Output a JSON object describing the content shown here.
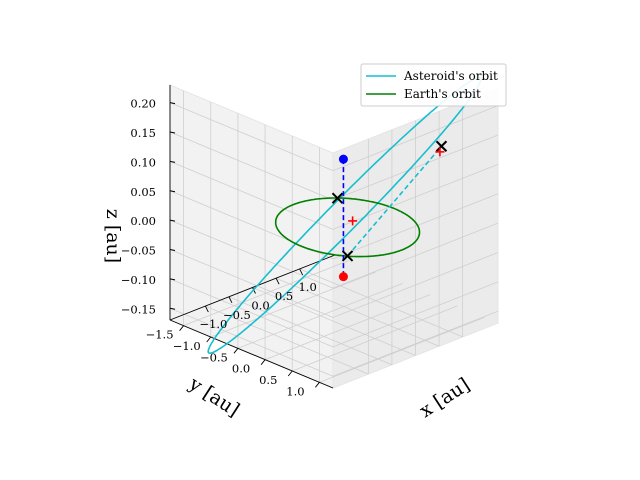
{
  "chart_data": {
    "type": "3d-line",
    "axes": {
      "x": {
        "label": "x [au]",
        "ticks": [
          -1.0,
          -0.5,
          0.0,
          0.5,
          1.0
        ],
        "tick_labels": [
          "−1.0",
          "−0.5",
          "0.0",
          "0.5",
          "1.0"
        ],
        "range": [
          -1.75,
          1.75
        ]
      },
      "y": {
        "label": "y [au]",
        "ticks": [
          -1.5,
          -1.0,
          -0.5,
          0.0,
          0.5,
          1.0
        ],
        "tick_labels": [
          "−1.5",
          "−1.0",
          "−0.5",
          "0.0",
          "0.5",
          "1.0"
        ],
        "range": [
          -1.75,
          1.25
        ]
      },
      "z": {
        "label": "z [au]",
        "ticks": [
          -0.15,
          -0.1,
          -0.05,
          0.0,
          0.05,
          0.1,
          0.15,
          0.2
        ],
        "tick_labels": [
          "−0.15",
          "−0.10",
          "−0.05",
          "0.00",
          "0.05",
          "0.10",
          "0.15",
          "0.20"
        ],
        "range": [
          -0.17,
          0.23
        ]
      }
    },
    "grid": true,
    "legend": {
      "position": "top-right"
    },
    "series": [
      {
        "name": "Asteroid's orbit",
        "kind": "ellipse",
        "color": "#17becf",
        "center": [
          0.28,
          -0.3,
          0.0
        ],
        "semi_axis_a": [
          1.45,
          1.25,
          0.235
        ],
        "semi_axis_b": [
          -0.45,
          0.45,
          0.0
        ]
      },
      {
        "name": "Earth's orbit",
        "kind": "circle",
        "color": "#008000",
        "center": [
          0,
          0,
          0
        ],
        "radius": 1.0
      }
    ],
    "lines": [
      {
        "from": [
          -0.75,
          0.65,
          0.0
        ],
        "to": [
          1.3,
          0.6,
          0.12
        ],
        "style": "dashed",
        "color": "#17becf"
      },
      {
        "from": [
          0.2,
          -0.25,
          0.1
        ],
        "to": [
          0.2,
          -0.25,
          -0.1
        ],
        "style": "dashed",
        "color": "#0000ff"
      }
    ],
    "points": [
      {
        "xyz": [
          0.2,
          -0.25,
          0.1
        ],
        "marker": "circle",
        "color": "#0000ff"
      },
      {
        "xyz": [
          0.2,
          -0.25,
          -0.1
        ],
        "marker": "circle",
        "color": "#ff0000"
      },
      {
        "xyz": [
          -0.75,
          0.65,
          0.0
        ],
        "marker": "x",
        "color": "#000000"
      },
      {
        "xyz": [
          0.65,
          -0.75,
          0.0
        ],
        "marker": "x",
        "color": "#000000"
      },
      {
        "xyz": [
          1.3,
          0.6,
          0.12
        ],
        "marker": "x",
        "color": "#000000"
      },
      {
        "xyz": [
          -0.7,
          0.7,
          0.06
        ],
        "marker": "plus",
        "color": "#ff0000"
      },
      {
        "xyz": [
          1.29,
          0.58,
          0.11
        ],
        "marker": "plus",
        "color": "#ff0000"
      }
    ]
  }
}
